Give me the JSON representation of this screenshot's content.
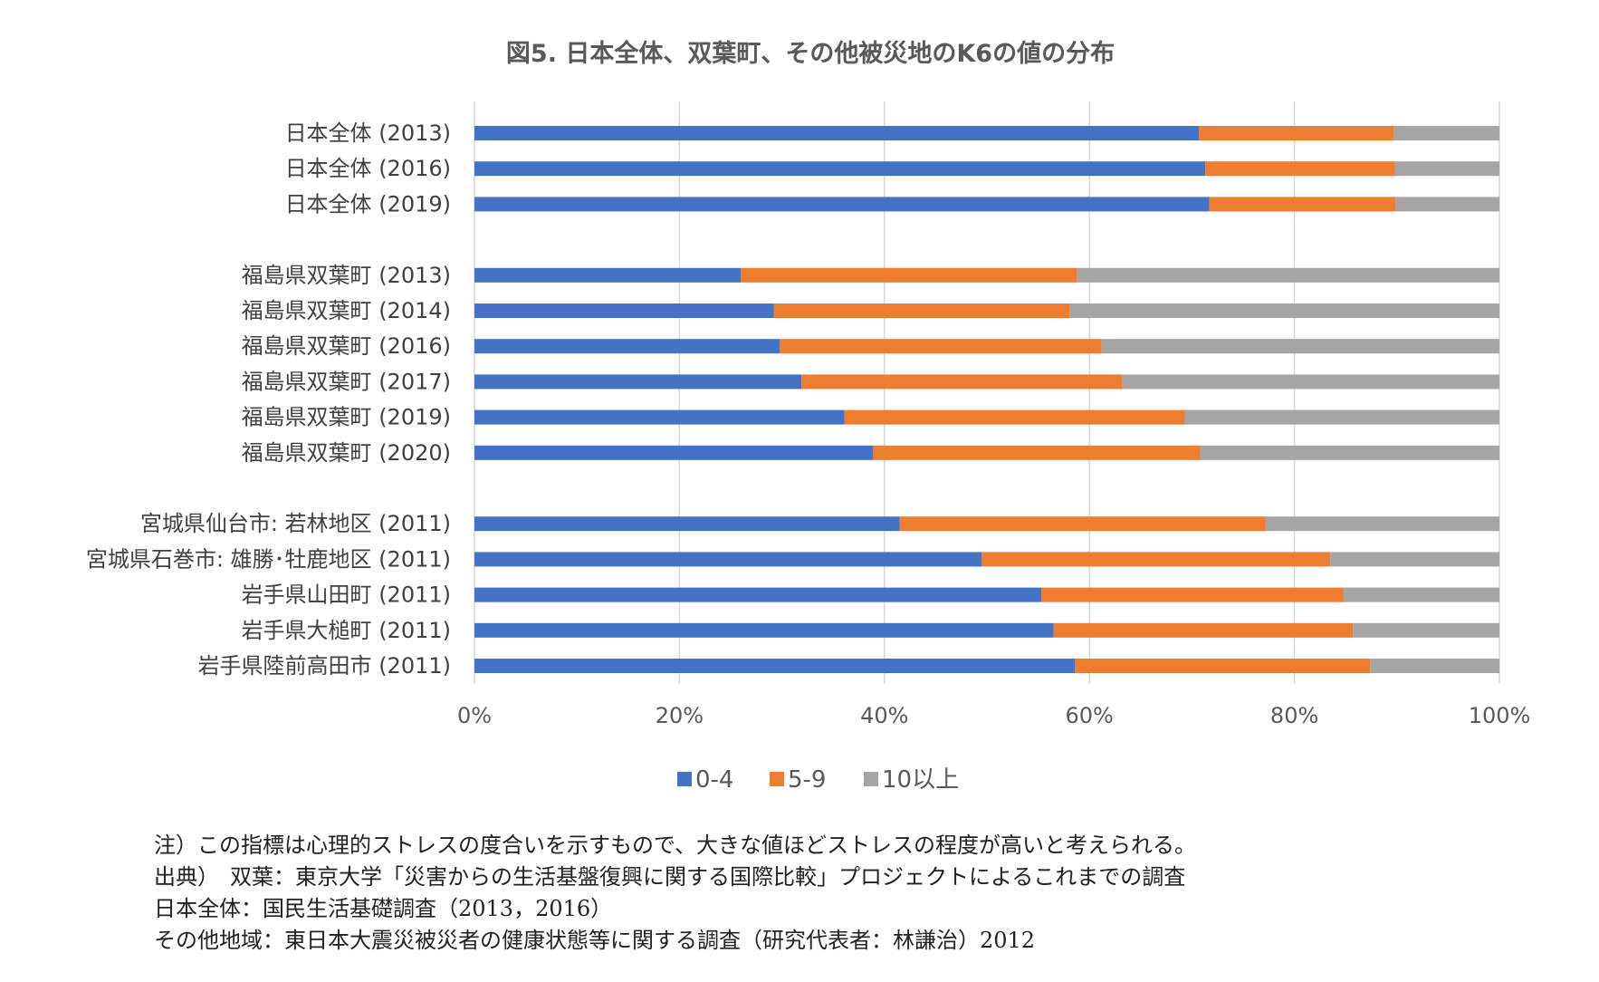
{
  "chart_data": {
    "type": "bar",
    "orientation": "horizontal",
    "stacked": "percent",
    "title": "図5. 日本全体、双葉町、その他被災地のK6の値の分布",
    "categories": [
      "日本全体 (2013)",
      "日本全体 (2016)",
      "日本全体 (2019)",
      "福島県双葉町 (2013)",
      "福島県双葉町 (2014)",
      "福島県双葉町 (2016)",
      "福島県双葉町 (2017)",
      "福島県双葉町 (2019)",
      "福島県双葉町 (2020)",
      "宮城県仙台市: 若林地区 (2011)",
      "宮城県石巻市: 雄勝･牡鹿地区 (2011)",
      "岩手県山田町 (2011)",
      "岩手県大槌町 (2011)",
      "岩手県陸前高田市 (2011)"
    ],
    "groups": [
      3,
      6,
      5
    ],
    "series": [
      {
        "name": "0-4",
        "color": "#4472c4",
        "values": [
          70.7,
          71.3,
          71.7,
          26.0,
          29.2,
          29.8,
          31.9,
          36.1,
          38.9,
          41.5,
          49.5,
          55.3,
          56.5,
          58.6
        ]
      },
      {
        "name": "5-9",
        "color": "#ed7d31",
        "values": [
          19.0,
          18.5,
          18.2,
          32.8,
          28.9,
          31.4,
          31.3,
          33.2,
          31.9,
          35.7,
          34.0,
          29.5,
          29.2,
          28.8
        ]
      },
      {
        "name": "10以上",
        "color": "#a5a5a5",
        "values": [
          10.3,
          10.2,
          10.1,
          41.2,
          41.9,
          38.8,
          36.8,
          30.7,
          29.2,
          22.8,
          16.5,
          15.2,
          14.3,
          12.6
        ]
      }
    ],
    "xlim": [
      0,
      100
    ],
    "x_ticks": [
      "0%",
      "20%",
      "40%",
      "60%",
      "80%",
      "100%"
    ],
    "grid": true,
    "legend_position": "bottom"
  },
  "notes": [
    "注）この指標は心理的ストレスの度合いを示すもので、大きな値ほどストレスの程度が高いと考えられる。",
    "出典）　双葉：東京大学「災害からの生活基盤復興に関する国際比較」プロジェクトによるこれまでの調査",
    "日本全体：国民生活基礎調査（2013，2016）",
    "その他地域：東日本大震災被災者の健康状態等に関する調査（研究代表者：林謙治）2012"
  ]
}
